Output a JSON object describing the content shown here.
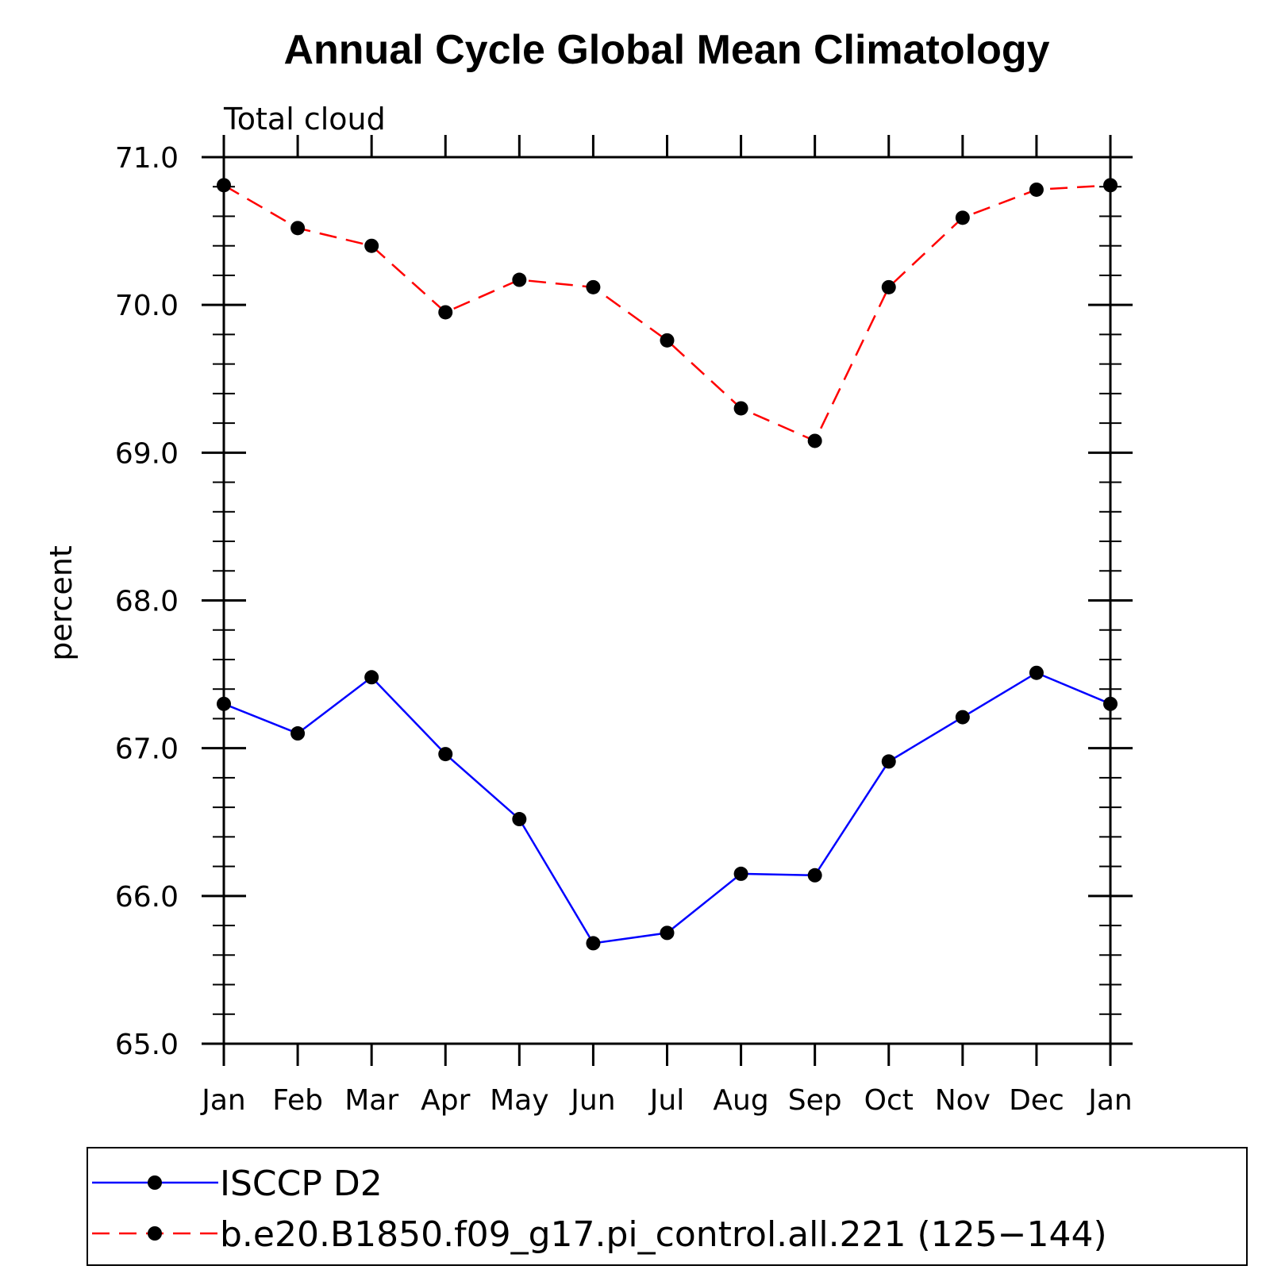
{
  "chart_data": {
    "type": "line",
    "title": "Annual Cycle Global Mean Climatology",
    "subtitle": "Total cloud",
    "ylabel": "percent",
    "xlabel": "",
    "categories": [
      "Jan",
      "Feb",
      "Mar",
      "Apr",
      "May",
      "Jun",
      "Jul",
      "Aug",
      "Sep",
      "Oct",
      "Nov",
      "Dec",
      "Jan"
    ],
    "ylim": [
      65.0,
      71.0
    ],
    "yticks": [
      "65.0",
      "66.0",
      "67.0",
      "68.0",
      "69.0",
      "70.0",
      "71.0"
    ],
    "legend_position": "bottom",
    "series": [
      {
        "name": "ISCCP D2",
        "color": "#0000ff",
        "dash": "solid",
        "values": [
          67.3,
          67.1,
          67.48,
          66.96,
          66.52,
          65.68,
          65.75,
          66.15,
          66.14,
          66.91,
          67.21,
          67.51,
          67.3
        ]
      },
      {
        "name": "b.e20.B1850.f09_g17.pi_control.all.221 (125−144)",
        "color": "#ff0000",
        "dash": "dashed",
        "values": [
          70.81,
          70.52,
          70.4,
          69.95,
          70.17,
          70.12,
          69.76,
          69.3,
          69.08,
          70.12,
          70.59,
          70.78,
          70.81
        ]
      }
    ]
  }
}
